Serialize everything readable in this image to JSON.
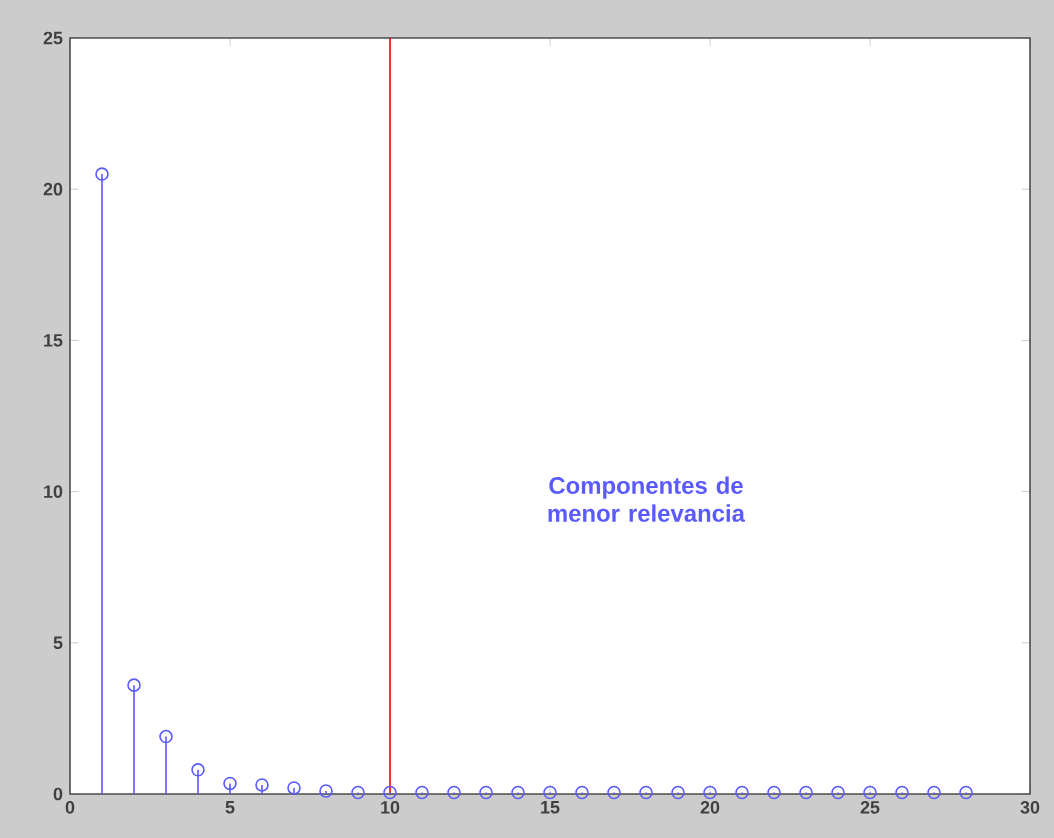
{
  "chart_data": {
    "type": "lollipop",
    "x": [
      1,
      2,
      3,
      4,
      5,
      6,
      7,
      8,
      9,
      10,
      11,
      12,
      13,
      14,
      15,
      16,
      17,
      18,
      19,
      20,
      21,
      22,
      23,
      24,
      25,
      26,
      27,
      28
    ],
    "values": [
      20.5,
      3.6,
      1.9,
      0.8,
      0.35,
      0.3,
      0.2,
      0.1,
      0.05,
      0.05,
      0.05,
      0.05,
      0.05,
      0.05,
      0.05,
      0.05,
      0.05,
      0.05,
      0.05,
      0.05,
      0.05,
      0.05,
      0.05,
      0.05,
      0.05,
      0.05,
      0.05,
      0.05
    ],
    "color": "#5a5aff",
    "marker": "circle",
    "xlim": [
      0,
      30
    ],
    "xticks": [
      0,
      5,
      10,
      15,
      20,
      25,
      30
    ],
    "ylim": [
      0,
      25
    ],
    "yticks": [
      0,
      5,
      10,
      15,
      20,
      25
    ],
    "ref_lines": [
      {
        "axis": "x",
        "value": 10,
        "color": "#ff0000"
      }
    ],
    "annotations": [
      "**Componentes de menor relevancia**"
    ]
  }
}
